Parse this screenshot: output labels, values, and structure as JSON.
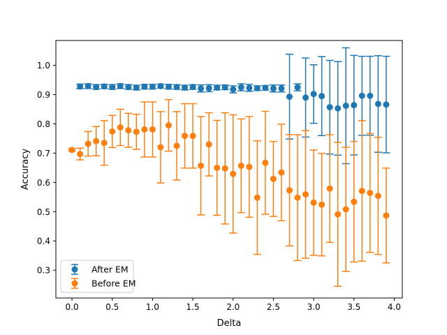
{
  "chart_data": {
    "type": "scatter",
    "title": "",
    "xlabel": "Delta",
    "ylabel": "Accuracy",
    "xlim": [
      -0.2,
      4.1
    ],
    "ylim": [
      0.205,
      1.085
    ],
    "xticks": [
      "0.0",
      "0.5",
      "1.0",
      "1.5",
      "2.0",
      "2.5",
      "3.0",
      "3.5",
      "4.0"
    ],
    "yticks": [
      "0.3",
      "0.4",
      "0.5",
      "0.6",
      "0.7",
      "0.8",
      "0.9",
      "1.0"
    ],
    "grid": false,
    "legend_position": "lower-left",
    "series": [
      {
        "name": "After EM",
        "color": "#1f77b4",
        "x": [
          0.1,
          0.2,
          0.3,
          0.4,
          0.5,
          0.6,
          0.7,
          0.8,
          0.9,
          1.0,
          1.1,
          1.2,
          1.3,
          1.4,
          1.5,
          1.6,
          1.7,
          1.8,
          1.9,
          2.0,
          2.1,
          2.2,
          2.3,
          2.4,
          2.5,
          2.6,
          2.7,
          2.8,
          2.9,
          3.0,
          3.1,
          3.2,
          3.3,
          3.4,
          3.5,
          3.6,
          3.7,
          3.8,
          3.9
        ],
        "y": [
          0.928,
          0.929,
          0.926,
          0.928,
          0.926,
          0.929,
          0.926,
          0.924,
          0.927,
          0.927,
          0.929,
          0.927,
          0.926,
          0.924,
          0.926,
          0.921,
          0.922,
          0.924,
          0.925,
          0.918,
          0.925,
          0.923,
          0.922,
          0.923,
          0.921,
          0.921,
          0.893,
          0.925,
          0.89,
          0.902,
          0.895,
          0.857,
          0.853,
          0.862,
          0.864,
          0.896,
          0.896,
          0.868,
          0.866
        ],
        "err": [
          0.008,
          0.008,
          0.008,
          0.007,
          0.008,
          0.008,
          0.008,
          0.008,
          0.008,
          0.008,
          0.007,
          0.008,
          0.008,
          0.008,
          0.008,
          0.012,
          0.012,
          0.008,
          0.008,
          0.012,
          0.012,
          0.012,
          0.008,
          0.008,
          0.012,
          0.012,
          0.145,
          0.012,
          0.135,
          0.1,
          0.135,
          0.16,
          0.16,
          0.198,
          0.17,
          0.135,
          0.135,
          0.165,
          0.165
        ]
      },
      {
        "name": "Before EM",
        "color": "#ff7f0e",
        "x": [
          0.0,
          0.1,
          0.2,
          0.3,
          0.4,
          0.5,
          0.6,
          0.7,
          0.8,
          0.9,
          1.0,
          1.1,
          1.2,
          1.3,
          1.4,
          1.5,
          1.6,
          1.7,
          1.8,
          1.9,
          2.0,
          2.1,
          2.2,
          2.3,
          2.4,
          2.5,
          2.6,
          2.7,
          2.8,
          2.9,
          3.0,
          3.1,
          3.2,
          3.3,
          3.4,
          3.5,
          3.6,
          3.7,
          3.8,
          3.9
        ],
        "y": [
          0.711,
          0.697,
          0.732,
          0.741,
          0.735,
          0.774,
          0.788,
          0.778,
          0.773,
          0.781,
          0.781,
          0.72,
          0.795,
          0.725,
          0.759,
          0.759,
          0.657,
          0.73,
          0.65,
          0.648,
          0.629,
          0.657,
          0.653,
          0.548,
          0.667,
          0.612,
          0.634,
          0.573,
          0.548,
          0.559,
          0.531,
          0.524,
          0.579,
          0.491,
          0.508,
          0.534,
          0.571,
          0.564,
          0.554,
          0.487
        ],
        "err": [
          0.004,
          0.02,
          0.042,
          0.05,
          0.076,
          0.055,
          0.062,
          0.058,
          0.06,
          0.094,
          0.094,
          0.122,
          0.088,
          0.117,
          0.11,
          0.11,
          0.168,
          0.108,
          0.162,
          0.19,
          0.202,
          0.16,
          0.172,
          0.194,
          0.176,
          0.128,
          0.165,
          0.19,
          0.215,
          0.218,
          0.18,
          0.175,
          0.184,
          0.246,
          0.212,
          0.206,
          0.24,
          0.203,
          0.2,
          0.162
        ]
      }
    ]
  }
}
